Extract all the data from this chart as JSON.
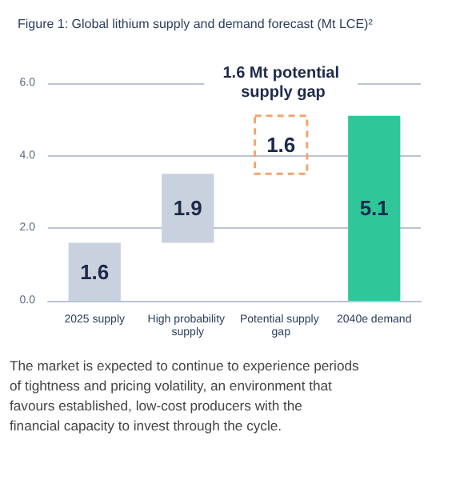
{
  "chart_data": {
    "type": "bar",
    "title": "Figure 1: Global lithium supply and demand forecast (Mt LCE)²",
    "categories": [
      "2025 supply",
      "High probability supply",
      "Potential supply gap",
      "2040e demand"
    ],
    "values": [
      1.6,
      1.9,
      1.6,
      5.1
    ],
    "base": [
      0,
      1.6,
      3.5,
      0
    ],
    "colors": [
      "#c9d1de",
      "#c9d1de",
      "#f4a46e",
      "#2fc79a"
    ],
    "data_labels": true,
    "ylim": [
      0,
      6
    ],
    "yticks": [
      {
        "value": 0,
        "label": "0.0"
      },
      {
        "value": 2,
        "label": "2.0"
      },
      {
        "value": 4,
        "label": "4.0"
      },
      {
        "value": 6,
        "label": "6.0"
      }
    ],
    "grid": "y",
    "annotations": [
      "1.6 Mt potential supply gap",
      "The market is expected to continue to experience periods of tightness and pricing volatility, an environment that favours established, low-cost producers with the financial capacity to invest through the cycle."
    ]
  }
}
